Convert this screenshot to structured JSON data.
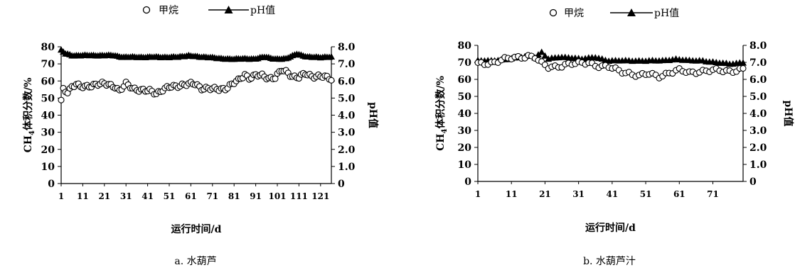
{
  "chart_data": [
    {
      "type": "scatter",
      "caption": "a.  水葫芦",
      "xlabel": "运行时间/d",
      "ylabel_left_prefix": "CH",
      "ylabel_left_sub": "4",
      "ylabel_left_suffix": "体积分数/%",
      "ylabel_right": "pH值",
      "legend_placement": "top",
      "grid": false,
      "xlim": [
        1,
        126
      ],
      "x_ticks": [
        1,
        11,
        21,
        31,
        41,
        51,
        61,
        71,
        81,
        91,
        101,
        111,
        121
      ],
      "ylim_left": [
        0,
        80
      ],
      "y_ticks_left": [
        0,
        10,
        20,
        30,
        40,
        50,
        60,
        70,
        80
      ],
      "ylim_right": [
        0,
        8
      ],
      "y_ticks_right": [
        "0",
        "1.0",
        "2.0",
        "3.0",
        "4.0",
        "5.0",
        "6.0",
        "7.0",
        "8.0"
      ],
      "series": [
        {
          "name": "甲烷",
          "marker": "open-circle",
          "axis": "left",
          "anchors_x": [
            1,
            2,
            4,
            6,
            8,
            10,
            13,
            16,
            20,
            23,
            26,
            28,
            31,
            34,
            37,
            40,
            42,
            45,
            48,
            51,
            54,
            57,
            60,
            63,
            66,
            68,
            71,
            74,
            77,
            80,
            83,
            86,
            88,
            91,
            94,
            97,
            100,
            103,
            106,
            108,
            111,
            114,
            117,
            120,
            123,
            126
          ],
          "anchors_y": [
            48,
            55,
            54,
            57,
            58,
            56,
            57,
            58,
            58,
            58,
            57,
            54,
            58,
            56,
            55,
            54,
            54,
            53,
            55,
            56,
            57,
            58,
            58,
            58,
            56,
            56,
            55,
            55,
            56,
            58,
            60,
            64,
            62,
            63,
            63,
            62,
            62,
            66,
            65,
            63,
            62,
            64,
            63,
            63,
            62,
            61
          ]
        },
        {
          "name": "pH值",
          "marker": "filled-triangle",
          "axis": "right",
          "anchors_x": [
            1,
            3,
            6,
            10,
            15,
            20,
            25,
            30,
            35,
            40,
            45,
            50,
            55,
            60,
            65,
            70,
            75,
            80,
            85,
            90,
            95,
            100,
            105,
            110,
            115,
            120,
            126
          ],
          "anchors_y": [
            7.8,
            7.6,
            7.5,
            7.5,
            7.5,
            7.5,
            7.5,
            7.4,
            7.4,
            7.4,
            7.4,
            7.4,
            7.4,
            7.5,
            7.4,
            7.4,
            7.3,
            7.3,
            7.3,
            7.3,
            7.4,
            7.3,
            7.3,
            7.6,
            7.4,
            7.4,
            7.4
          ]
        }
      ]
    },
    {
      "type": "scatter",
      "caption": "b.  水葫芦汁",
      "xlabel": "运行时间/d",
      "ylabel_left_prefix": "CH",
      "ylabel_left_sub": "4",
      "ylabel_left_suffix": "体积分数/%",
      "ylabel_right": "pH值",
      "legend_placement": "top",
      "grid": false,
      "xlim": [
        1,
        80
      ],
      "x_ticks": [
        1,
        11,
        21,
        31,
        41,
        51,
        61,
        71
      ],
      "ylim_left": [
        0,
        80
      ],
      "y_ticks_left": [
        0,
        10,
        20,
        30,
        40,
        50,
        60,
        70,
        80
      ],
      "ylim_right": [
        0,
        8
      ],
      "y_ticks_right": [
        "0",
        "1.0",
        "2.0",
        "3.0",
        "4.0",
        "5.0",
        "6.0",
        "7.0",
        "8.0"
      ],
      "series": [
        {
          "name": "甲烷",
          "marker": "open-circle",
          "axis": "left",
          "anchors_x": [
            1,
            5,
            10,
            13,
            16,
            18,
            20,
            22,
            25,
            28,
            31,
            34,
            37,
            40,
            43,
            46,
            49,
            52,
            55,
            58,
            61,
            64,
            67,
            70,
            73,
            76,
            80
          ],
          "anchors_y": [
            69,
            70,
            72,
            73,
            74,
            73,
            69,
            67,
            68,
            69,
            69,
            70,
            68,
            67,
            65,
            64,
            62,
            63,
            62,
            64,
            65,
            64,
            65,
            65,
            65,
            65,
            66
          ]
        },
        {
          "name": "pH值",
          "marker": "filled-triangle",
          "axis": "right",
          "anchors_x": [
            1,
            5,
            10,
            14,
            17,
            18,
            20,
            22,
            25,
            28,
            32,
            36,
            40,
            44,
            48,
            52,
            56,
            60,
            64,
            68,
            72,
            76,
            80
          ],
          "anchors_y": [
            7.1,
            7.1,
            7.2,
            7.3,
            7.4,
            7.3,
            7.6,
            7.2,
            7.3,
            7.3,
            7.2,
            7.3,
            7.1,
            7.1,
            7.1,
            7.1,
            7.1,
            7.2,
            7.1,
            7.1,
            7.0,
            6.9,
            7.0
          ]
        }
      ]
    }
  ]
}
